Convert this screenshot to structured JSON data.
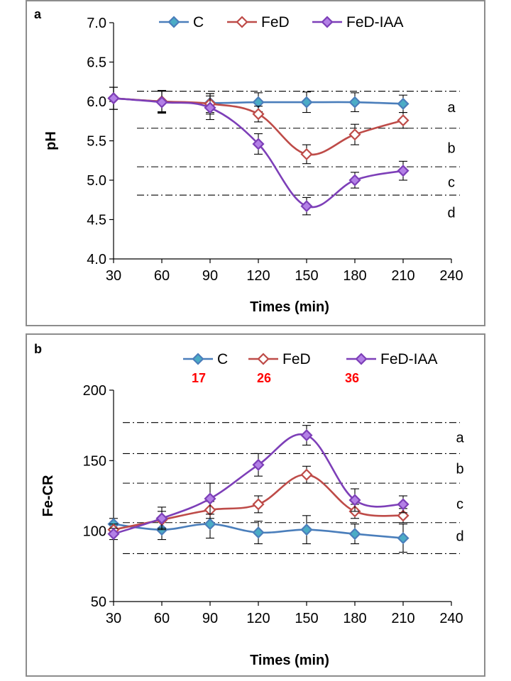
{
  "chart_data": [
    {
      "type": "line",
      "panel": "a",
      "xlabel": "Times (min)",
      "ylabel": "pH",
      "xlim": [
        30,
        240
      ],
      "ylim": [
        4.0,
        7.0
      ],
      "xticks": [
        30,
        60,
        90,
        120,
        150,
        180,
        210,
        240
      ],
      "yticks": [
        4.0,
        4.5,
        5.0,
        5.5,
        6.0,
        6.5,
        7.0
      ],
      "ytick_labels": [
        "4.0",
        "4.5",
        "5.0",
        "5.5",
        "6.0",
        "6.5",
        "7.0"
      ],
      "x": [
        30,
        60,
        90,
        120,
        150,
        180,
        210
      ],
      "series": [
        {
          "name": "C",
          "color": "#4a7ebb",
          "marker_fill": "#4bacc6",
          "values": [
            6.04,
            6.0,
            5.98,
            5.99,
            5.99,
            5.99,
            5.97
          ],
          "errors": [
            0.14,
            0.13,
            0.12,
            0.12,
            0.13,
            0.12,
            0.11
          ]
        },
        {
          "name": "FeD",
          "color": "#be4b48",
          "marker_fill": "#ffffff",
          "values": [
            6.04,
            6.0,
            5.97,
            5.84,
            5.33,
            5.58,
            5.76
          ],
          "errors": [
            0.14,
            0.14,
            0.13,
            0.1,
            0.12,
            0.13,
            0.1
          ]
        },
        {
          "name": "FeD-IAA",
          "color": "#7d3fb8",
          "marker_fill": "#b380e6",
          "values": [
            6.04,
            5.99,
            5.92,
            5.46,
            4.67,
            5.0,
            5.12
          ],
          "errors": [
            0.14,
            0.14,
            0.15,
            0.13,
            0.11,
            0.1,
            0.12
          ]
        }
      ],
      "bands": [
        {
          "label": "a",
          "y": 5.92
        },
        {
          "label": "b",
          "y": 5.4
        },
        {
          "label": "c",
          "y": 4.97
        },
        {
          "label": "d",
          "y": 4.58
        }
      ],
      "band_lines": [
        6.13,
        5.66,
        5.17,
        4.81
      ]
    },
    {
      "type": "line",
      "panel": "b",
      "xlabel": "Times (min)",
      "ylabel": "Fe-CR",
      "xlim": [
        30,
        240
      ],
      "ylim": [
        50,
        200
      ],
      "xticks": [
        30,
        60,
        90,
        120,
        150,
        180,
        210,
        240
      ],
      "yticks": [
        50,
        100,
        150,
        200
      ],
      "ytick_labels": [
        "50",
        "100",
        "150",
        "200"
      ],
      "x": [
        30,
        60,
        90,
        120,
        150,
        180,
        210
      ],
      "series": [
        {
          "name": "C",
          "color": "#4a7ebb",
          "marker_fill": "#4bacc6",
          "values": [
            105,
            101,
            105,
            99,
            101,
            98,
            95
          ],
          "errors": [
            4,
            7,
            10,
            8,
            10,
            7,
            10
          ],
          "annotation": "17"
        },
        {
          "name": "FeD",
          "color": "#be4b48",
          "marker_fill": "#ffffff",
          "values": [
            101,
            108,
            115,
            119,
            140,
            114,
            111
          ],
          "errors": [
            4,
            6,
            6,
            6,
            6,
            5,
            5
          ],
          "annotation": "26"
        },
        {
          "name": "FeD-IAA",
          "color": "#7d3fb8",
          "marker_fill": "#b380e6",
          "values": [
            98,
            109,
            123,
            147,
            168,
            122,
            119
          ],
          "errors": [
            4,
            8,
            11,
            8,
            7,
            8,
            6
          ],
          "annotation": "36"
        }
      ],
      "bands": [
        {
          "label": "a",
          "y": 166
        },
        {
          "label": "b",
          "y": 144
        },
        {
          "label": "c",
          "y": 119
        },
        {
          "label": "d",
          "y": 96
        }
      ],
      "band_lines": [
        177,
        155,
        134,
        106,
        84
      ]
    }
  ]
}
